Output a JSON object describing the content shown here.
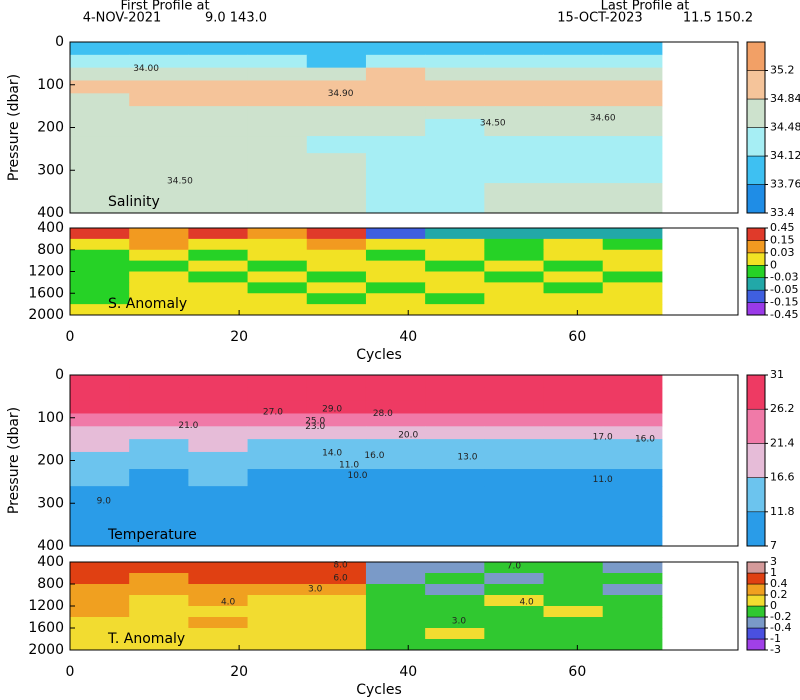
{
  "header": {
    "first_title": "First Profile at",
    "first_date": "4-NOV-2021",
    "first_pos": "9.0 143.0",
    "last_title": "Last Profile at",
    "last_date": "15-OCT-2023",
    "last_pos": "11.5 150.2"
  },
  "chart_data": [
    {
      "type": "heatmap",
      "label": "Salinity",
      "ylabel": "Pressure (dbar)",
      "xlim": [
        0,
        79
      ],
      "ylim": [
        0,
        400
      ],
      "y_inverted": true,
      "yticks": [
        0,
        100,
        200,
        300,
        400
      ],
      "xbins": [
        0,
        7,
        14,
        21,
        28,
        35,
        42,
        49,
        56,
        63,
        70
      ],
      "ybins": [
        0,
        30,
        60,
        90,
        120,
        150,
        180,
        220,
        260,
        330,
        400
      ],
      "values": [
        [
          34.0,
          33.9,
          34.0,
          34.1,
          33.9,
          34.0,
          33.8,
          34.1,
          34.0,
          34.0
        ],
        [
          34.2,
          34.2,
          34.3,
          34.2,
          34.1,
          34.2,
          34.3,
          34.3,
          34.2,
          34.3
        ],
        [
          34.6,
          34.7,
          34.7,
          34.6,
          34.7,
          34.9,
          34.8,
          34.7,
          34.8,
          34.7
        ],
        [
          34.9,
          34.95,
          34.9,
          34.9,
          34.95,
          35.0,
          34.95,
          34.9,
          35.0,
          34.95
        ],
        [
          34.8,
          34.9,
          34.85,
          34.9,
          34.9,
          34.95,
          34.9,
          34.95,
          34.9,
          34.9
        ],
        [
          34.6,
          34.6,
          34.6,
          34.7,
          34.7,
          34.8,
          34.7,
          34.7,
          34.7,
          34.6
        ],
        [
          34.5,
          34.55,
          34.5,
          34.55,
          34.55,
          34.5,
          34.45,
          34.5,
          34.5,
          34.5
        ],
        [
          34.55,
          34.5,
          34.55,
          34.5,
          34.45,
          34.4,
          34.4,
          34.4,
          34.4,
          34.45
        ],
        [
          34.55,
          34.5,
          34.5,
          34.55,
          34.5,
          34.4,
          34.4,
          34.45,
          34.4,
          34.45
        ],
        [
          34.55,
          34.55,
          34.55,
          34.55,
          34.5,
          34.45,
          34.45,
          34.5,
          34.5,
          34.5
        ]
      ],
      "annotations": [
        {
          "text": "34.00",
          "x": 9,
          "y": 62
        },
        {
          "text": "34.90",
          "x": 32,
          "y": 120
        },
        {
          "text": "34.50",
          "x": 50,
          "y": 190
        },
        {
          "text": "34.60",
          "x": 63,
          "y": 178
        },
        {
          "text": "34.50",
          "x": 13,
          "y": 325
        }
      ],
      "colorbar": {
        "scale": "linear",
        "levels": [
          33.4,
          33.76,
          34.12,
          34.48,
          34.84,
          35.2,
          35.56
        ],
        "colors": [
          "#1f8de6",
          "#3ec0f2",
          "#a6eef4",
          "#cde2cd",
          "#f5c49a",
          "#f2a066"
        ],
        "ticks": [
          33.4,
          33.76,
          34.12,
          34.48,
          34.84,
          35.2
        ]
      }
    },
    {
      "type": "heatmap",
      "label": "S. Anomaly",
      "xlabel": "Cycles",
      "xlim": [
        0,
        79
      ],
      "ylim": [
        400,
        2000
      ],
      "y_inverted": true,
      "yticks": [
        400,
        800,
        1200,
        1600,
        2000
      ],
      "xticks": [
        0,
        20,
        40,
        60
      ],
      "xbins": [
        0,
        7,
        14,
        21,
        28,
        35,
        42,
        49,
        56,
        63,
        70
      ],
      "ybins": [
        400,
        600,
        800,
        1000,
        1200,
        1400,
        1600,
        1800,
        2000
      ],
      "values": [
        [
          0.2,
          0.1,
          0.2,
          0.1,
          0.2,
          -0.1,
          -0.04,
          -0.04,
          -0.04,
          -0.04
        ],
        [
          0.02,
          0.04,
          0.02,
          0.02,
          0.04,
          0.02,
          0.01,
          -0.01,
          0.02,
          -0.01
        ],
        [
          -0.01,
          0.02,
          -0.01,
          0.02,
          0.01,
          -0.01,
          0.02,
          -0.01,
          0.01,
          0.02
        ],
        [
          -0.01,
          -0.01,
          0.01,
          -0.01,
          0.02,
          0.01,
          -0.01,
          0.02,
          -0.01,
          0.01
        ],
        [
          -0.02,
          0.01,
          -0.01,
          0.01,
          -0.01,
          0.02,
          0.01,
          -0.01,
          0.01,
          -0.01
        ],
        [
          -0.01,
          0.01,
          0.02,
          -0.01,
          0.01,
          -0.01,
          0.02,
          0.01,
          -0.01,
          0.02
        ],
        [
          -0.01,
          0.02,
          0.01,
          0.02,
          -0.01,
          0.01,
          -0.01,
          0.02,
          0.01,
          0.01
        ],
        [
          0.01,
          0.02,
          0.02,
          0.01,
          0.02,
          0.01,
          0.01,
          0.02,
          0.02,
          0.01
        ]
      ],
      "colorbar": {
        "scale": "uniform",
        "levels": [
          -0.45,
          -0.15,
          -0.05,
          -0.03,
          0,
          0.03,
          0.15,
          0.45
        ],
        "colors": [
          "#9a3ae8",
          "#3f5fe0",
          "#22a8a8",
          "#26d226",
          "#f2e224",
          "#f29a20",
          "#e03a2a"
        ]
      }
    },
    {
      "type": "heatmap",
      "label": "Temperature",
      "ylabel": "Pressure (dbar)",
      "xlim": [
        0,
        79
      ],
      "ylim": [
        0,
        400
      ],
      "y_inverted": true,
      "yticks": [
        0,
        100,
        200,
        300,
        400
      ],
      "xbins": [
        0,
        7,
        14,
        21,
        28,
        35,
        42,
        49,
        56,
        63,
        70
      ],
      "ybins": [
        0,
        30,
        60,
        90,
        120,
        150,
        180,
        220,
        260,
        330,
        400
      ],
      "values": [
        [
          29.8,
          29.9,
          29.8,
          29.7,
          29.9,
          29.8,
          29.9,
          29.7,
          29.8,
          29.8
        ],
        [
          29,
          29,
          29,
          28.8,
          29,
          29,
          29,
          28.5,
          29,
          29
        ],
        [
          28,
          27.5,
          28,
          27.5,
          27,
          27.5,
          28,
          27,
          27.5,
          28
        ],
        [
          25,
          24,
          25,
          24,
          22,
          24,
          25,
          24,
          23,
          24
        ],
        [
          21,
          20,
          21,
          20,
          18,
          20,
          20,
          19,
          19,
          20
        ],
        [
          17,
          16,
          17,
          16,
          15,
          16,
          16,
          15,
          15,
          16
        ],
        [
          14,
          13,
          14,
          13,
          12,
          13,
          13,
          12,
          12,
          13
        ],
        [
          12,
          11.5,
          12,
          11.5,
          11,
          11.5,
          11.5,
          11,
          11,
          11.5
        ],
        [
          10.5,
          10,
          10.5,
          10,
          9.5,
          10,
          10,
          9.5,
          9.5,
          10
        ],
        [
          9,
          8.5,
          9,
          8.5,
          8.5,
          8.5,
          9,
          8.5,
          8.5,
          8.5
        ]
      ],
      "annotations": [
        {
          "text": "27.0",
          "x": 24,
          "y": 87
        },
        {
          "text": "29.0",
          "x": 31,
          "y": 80
        },
        {
          "text": "28.0",
          "x": 37,
          "y": 90
        },
        {
          "text": "25.0",
          "x": 29,
          "y": 108
        },
        {
          "text": "23.0",
          "x": 29,
          "y": 120
        },
        {
          "text": "21.0",
          "x": 14,
          "y": 118
        },
        {
          "text": "20.0",
          "x": 40,
          "y": 140
        },
        {
          "text": "17.0",
          "x": 63,
          "y": 145
        },
        {
          "text": "16.0",
          "x": 68,
          "y": 150
        },
        {
          "text": "14.0",
          "x": 31,
          "y": 183
        },
        {
          "text": "16.0",
          "x": 36,
          "y": 188
        },
        {
          "text": "13.0",
          "x": 47,
          "y": 192
        },
        {
          "text": "11.0",
          "x": 33,
          "y": 210
        },
        {
          "text": "10.0",
          "x": 34,
          "y": 235
        },
        {
          "text": "11.0",
          "x": 63,
          "y": 245
        },
        {
          "text": "9.0",
          "x": 4,
          "y": 295
        }
      ],
      "colorbar": {
        "scale": "linear",
        "levels": [
          7,
          11.8,
          16.6,
          21.4,
          26.2,
          31
        ],
        "colors": [
          "#2a9ce8",
          "#6cc4ee",
          "#e6bcd8",
          "#f07aa8",
          "#ee3a63"
        ],
        "ticks": [
          7,
          11.8,
          16.6,
          21.4,
          26.2,
          31
        ]
      }
    },
    {
      "type": "heatmap",
      "label": "T. Anomaly",
      "xlabel": "Cycles",
      "xlim": [
        0,
        79
      ],
      "ylim": [
        400,
        2000
      ],
      "y_inverted": true,
      "yticks": [
        400,
        800,
        1200,
        1600,
        2000
      ],
      "xticks": [
        0,
        20,
        40,
        60
      ],
      "xbins": [
        0,
        7,
        14,
        21,
        28,
        35,
        42,
        49,
        56,
        63,
        70
      ],
      "ybins": [
        400,
        600,
        800,
        1000,
        1200,
        1400,
        1600,
        1800,
        2000
      ],
      "values": [
        [
          0.6,
          0.8,
          0.6,
          0.7,
          0.5,
          -0.3,
          -0.3,
          -0.2,
          -0.1,
          -0.3
        ],
        [
          0.5,
          0.3,
          0.6,
          0.5,
          0.4,
          -0.3,
          -0.1,
          -0.3,
          -0.2,
          -0.1
        ],
        [
          0.3,
          0.2,
          0.3,
          0.3,
          0.2,
          -0.1,
          -0.3,
          -0.1,
          -0.1,
          -0.3
        ],
        [
          0.3,
          0.1,
          0.2,
          0.1,
          0.1,
          -0.1,
          -0.1,
          0.1,
          -0.1,
          -0.1
        ],
        [
          0.3,
          0.1,
          0.1,
          0.1,
          0.1,
          -0.1,
          -0.1,
          -0.1,
          0.1,
          -0.1
        ],
        [
          0.1,
          0.1,
          0.3,
          0.1,
          0.1,
          -0.1,
          -0.1,
          -0.1,
          -0.1,
          -0.1
        ],
        [
          0.1,
          0.1,
          0.1,
          0.1,
          0.1,
          -0.1,
          0.1,
          -0.1,
          -0.1,
          -0.1
        ],
        [
          0.1,
          0.1,
          0.1,
          0.1,
          0.1,
          -0.1,
          -0.1,
          -0.1,
          -0.1,
          -0.1
        ]
      ],
      "annotations": [
        {
          "text": "8.0",
          "x": 32,
          "y": 455
        },
        {
          "text": "6.0",
          "x": 32,
          "y": 690
        },
        {
          "text": "3.0",
          "x": 29,
          "y": 890
        },
        {
          "text": "4.0",
          "x": 18.7,
          "y": 1130
        },
        {
          "text": "7.0",
          "x": 52.5,
          "y": 470
        },
        {
          "text": "4.0",
          "x": 54,
          "y": 1130
        },
        {
          "text": "3.0",
          "x": 46,
          "y": 1470
        }
      ],
      "colorbar": {
        "scale": "uniform",
        "levels": [
          -3,
          -1,
          -0.4,
          -0.2,
          0,
          0.2,
          0.4,
          1,
          3
        ],
        "colors": [
          "#a040e8",
          "#4a50e0",
          "#7a9ac8",
          "#30c830",
          "#f2dc30",
          "#f0a020",
          "#e04012",
          "#d49a9a"
        ]
      }
    }
  ]
}
